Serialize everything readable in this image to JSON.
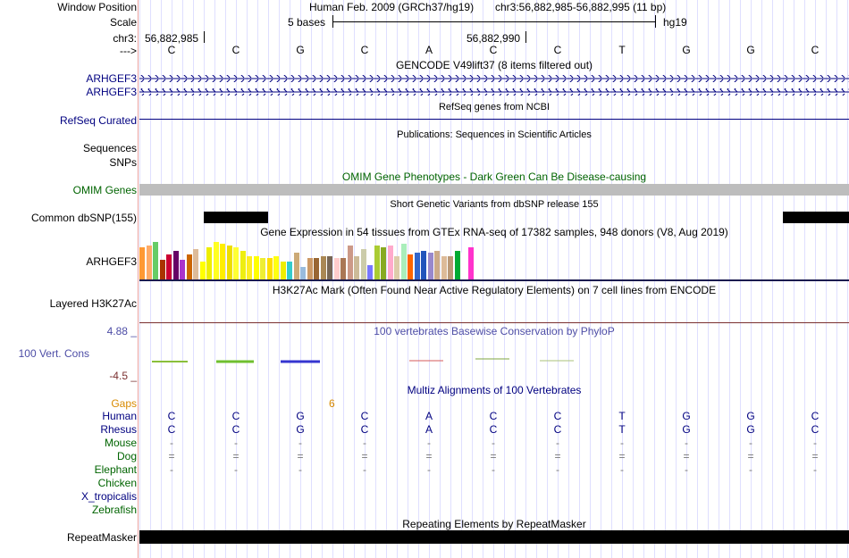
{
  "labels": {
    "window_position": "Window Position",
    "scale": "Scale",
    "chr": "chr3:",
    "arrow": "--->",
    "gencode1": "ARHGEF3",
    "gencode2": "ARHGEF3",
    "refseq": "RefSeq Curated",
    "sequences": "Sequences",
    "snps": "SNPs",
    "omim": "OMIM Genes",
    "common_snp": "Common dbSNP(155)",
    "gtex": "ARHGEF3",
    "h3k27ac": "Layered H3K27Ac",
    "phylop_max": "4.88 _",
    "phylop": "100 Vert. Cons",
    "phylop_min": "-4.5 _",
    "gaps": "Gaps",
    "repeatmasker": "RepeatMasker"
  },
  "header": {
    "assembly": "Human Feb. 2009 (GRCh37/hg19)",
    "position": "chr3:56,882,985-56,882,995 (11 bp)",
    "scale_text": "5 bases",
    "scale_db": "hg19",
    "coord1": "56,882,985",
    "coord2": "56,882,990"
  },
  "bases": [
    "C",
    "C",
    "G",
    "C",
    "A",
    "C",
    "C",
    "T",
    "G",
    "G",
    "C"
  ],
  "track_titles": {
    "gencode": "GENCODE V49lift37 (8 items filtered out)",
    "refseq": "RefSeq genes from NCBI",
    "publications": "Publications: Sequences in Scientific Articles",
    "omim": "OMIM Gene Phenotypes - Dark Green Can Be Disease-causing",
    "snp": "Short Genetic Variants from dbSNP release 155",
    "gtex": "Gene Expression in 54 tissues from GTEx RNA-seq of 17382 samples, 948 donors (V8, Aug 2019)",
    "h3k27ac": "H3K27Ac Mark (Often Found Near Active Regulatory Elements) on 7 cell lines from ENCODE",
    "phylop": "100 vertebrates Basewise Conservation by PhyloP",
    "multiz": "Multiz Alignments of 100 Vertebrates",
    "repeatmasker": "Repeating Elements by RepeatMasker"
  },
  "multiz": {
    "gap_count": "6",
    "species": [
      {
        "name": "Human",
        "color": "#000080",
        "bases": [
          "C",
          "C",
          "G",
          "C",
          "A",
          "C",
          "C",
          "T",
          "G",
          "G",
          "C"
        ]
      },
      {
        "name": "Rhesus",
        "color": "#000080",
        "bases": [
          "C",
          "C",
          "G",
          "C",
          "A",
          "C",
          "C",
          "T",
          "G",
          "G",
          "C"
        ]
      },
      {
        "name": "Mouse",
        "color": "#006400",
        "bases": [
          "-",
          "-",
          "-",
          "-",
          "-",
          "-",
          "-",
          "-",
          "-",
          "-",
          "-"
        ]
      },
      {
        "name": "Dog",
        "color": "#006400",
        "bases": [
          "=",
          "=",
          "=",
          "=",
          "=",
          "=",
          "=",
          "=",
          "=",
          "=",
          "="
        ]
      },
      {
        "name": "Elephant",
        "color": "#006400",
        "bases": [
          "-",
          "-",
          "-",
          "-",
          "-",
          "-",
          "-",
          "-",
          "-",
          "-",
          "-"
        ]
      },
      {
        "name": "Chicken",
        "color": "#006400",
        "bases": [
          "",
          "",
          "",
          "",
          "",
          "",
          "",
          "",
          "",
          "",
          ""
        ]
      },
      {
        "name": "X_tropicalis",
        "color": "#000080",
        "bases": [
          "",
          "",
          "",
          "",
          "",
          "",
          "",
          "",
          "",
          "",
          ""
        ]
      },
      {
        "name": "Zebrafish",
        "color": "#006400",
        "bases": [
          "",
          "",
          "",
          "",
          "",
          "",
          "",
          "",
          "",
          "",
          ""
        ]
      }
    ]
  },
  "gtex_colors": [
    "#ff9933",
    "#ffaa66",
    "#66cc66",
    "#aa3300",
    "#cc0033",
    "#660066",
    "#aa33cc",
    "#cc6600",
    "#ddbb99",
    "#ffff00",
    "#eeee00",
    "#ffff22",
    "#ffee00",
    "#eedd00",
    "#ffff33",
    "#eeee11",
    "#ffee22",
    "#ffff00",
    "#eeee33",
    "#ffdd00",
    "#ffff11",
    "#eeee00",
    "#33cccc",
    "#ccaa77",
    "#99bbdd",
    "#cc9966",
    "#996633",
    "#aa8855",
    "#776655",
    "#ffcccc",
    "#aa7755",
    "#cc9988",
    "#ccbb99",
    "#ccccaa",
    "#7777ff",
    "#aacc33",
    "#88aa22",
    "#ffaacc",
    "#ddccaa",
    "#aaeebb",
    "#ff6600",
    "#3366cc",
    "#2255bb",
    "#9988cc",
    "#ccaa88",
    "#ddbb99",
    "#bb9977",
    "#00aa33",
    "#ffffff",
    "#ff33cc"
  ]
}
